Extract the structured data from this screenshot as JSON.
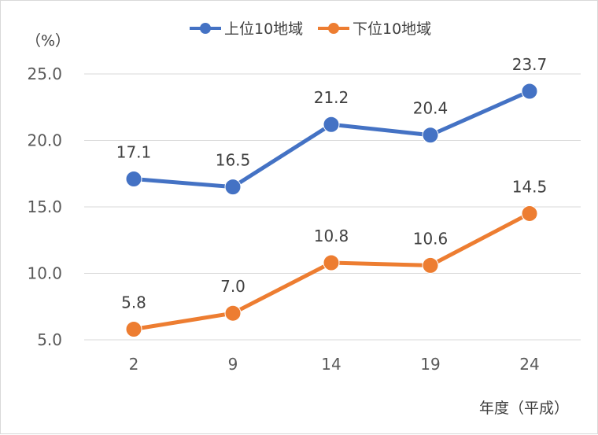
{
  "chart_data": {
    "type": "line",
    "x": [
      "2",
      "9",
      "14",
      "19",
      "24"
    ],
    "series": [
      {
        "name": "上位10地域",
        "color": "#4472C4",
        "values": [
          17.1,
          16.5,
          21.2,
          20.4,
          23.7
        ],
        "labels": [
          "17.1",
          "16.5",
          "21.2",
          "20.4",
          "23.7"
        ]
      },
      {
        "name": "下位10地域",
        "color": "#ED7D31",
        "values": [
          5.8,
          7.0,
          10.8,
          10.6,
          14.5
        ],
        "labels": [
          "5.8",
          "7.0",
          "10.8",
          "10.6",
          "14.5"
        ]
      }
    ],
    "ylim": [
      5.0,
      25.0
    ],
    "yticks": [
      "5.0",
      "10.0",
      "15.0",
      "20.0",
      "25.0"
    ],
    "ylabel": "（%）",
    "xlabel": "年度（平成）",
    "grid": true,
    "legend": "top"
  }
}
